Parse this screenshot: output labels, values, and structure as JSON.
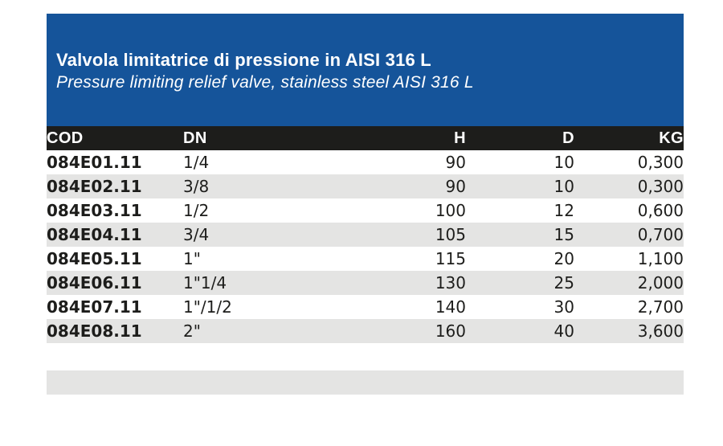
{
  "banner": {
    "title_it": "Valvola limitatrice di pressione in AISI 316 L",
    "title_en": "Pressure limiting relief valve, stainless steel AISI 316 L",
    "background_color": "#15549a",
    "text_color": "#ffffff"
  },
  "table": {
    "columns": [
      "COD",
      "DN",
      "H",
      "D",
      "KG"
    ],
    "header_background": "#1d1d1b",
    "header_text_color": "#ffffff",
    "alt_row_color": "#e4e4e3",
    "text_color": "#1d1d1b",
    "rows": [
      {
        "cod": "084E01.11",
        "dn": "1/4",
        "h": "90",
        "d": "10",
        "kg": "0,300"
      },
      {
        "cod": "084E02.11",
        "dn": "3/8",
        "h": "90",
        "d": "10",
        "kg": "0,300"
      },
      {
        "cod": "084E03.11",
        "dn": "1/2",
        "h": "100",
        "d": "12",
        "kg": "0,600"
      },
      {
        "cod": "084E04.11",
        "dn": "3/4",
        "h": "105",
        "d": "15",
        "kg": "0,700"
      },
      {
        "cod": "084E05.11",
        "dn": "1\"",
        "h": "115",
        "d": "20",
        "kg": "1,100"
      },
      {
        "cod": "084E06.11",
        "dn": "1\"1/4",
        "h": "130",
        "d": "25",
        "kg": "2,000"
      },
      {
        "cod": "084E07.11",
        "dn": "1\"/1/2",
        "h": "140",
        "d": "30",
        "kg": "2,700"
      },
      {
        "cod": "084E08.11",
        "dn": "2\"",
        "h": "160",
        "d": "40",
        "kg": "3,600"
      }
    ]
  },
  "footer_bar": {
    "background_color": "#e4e4e3"
  }
}
